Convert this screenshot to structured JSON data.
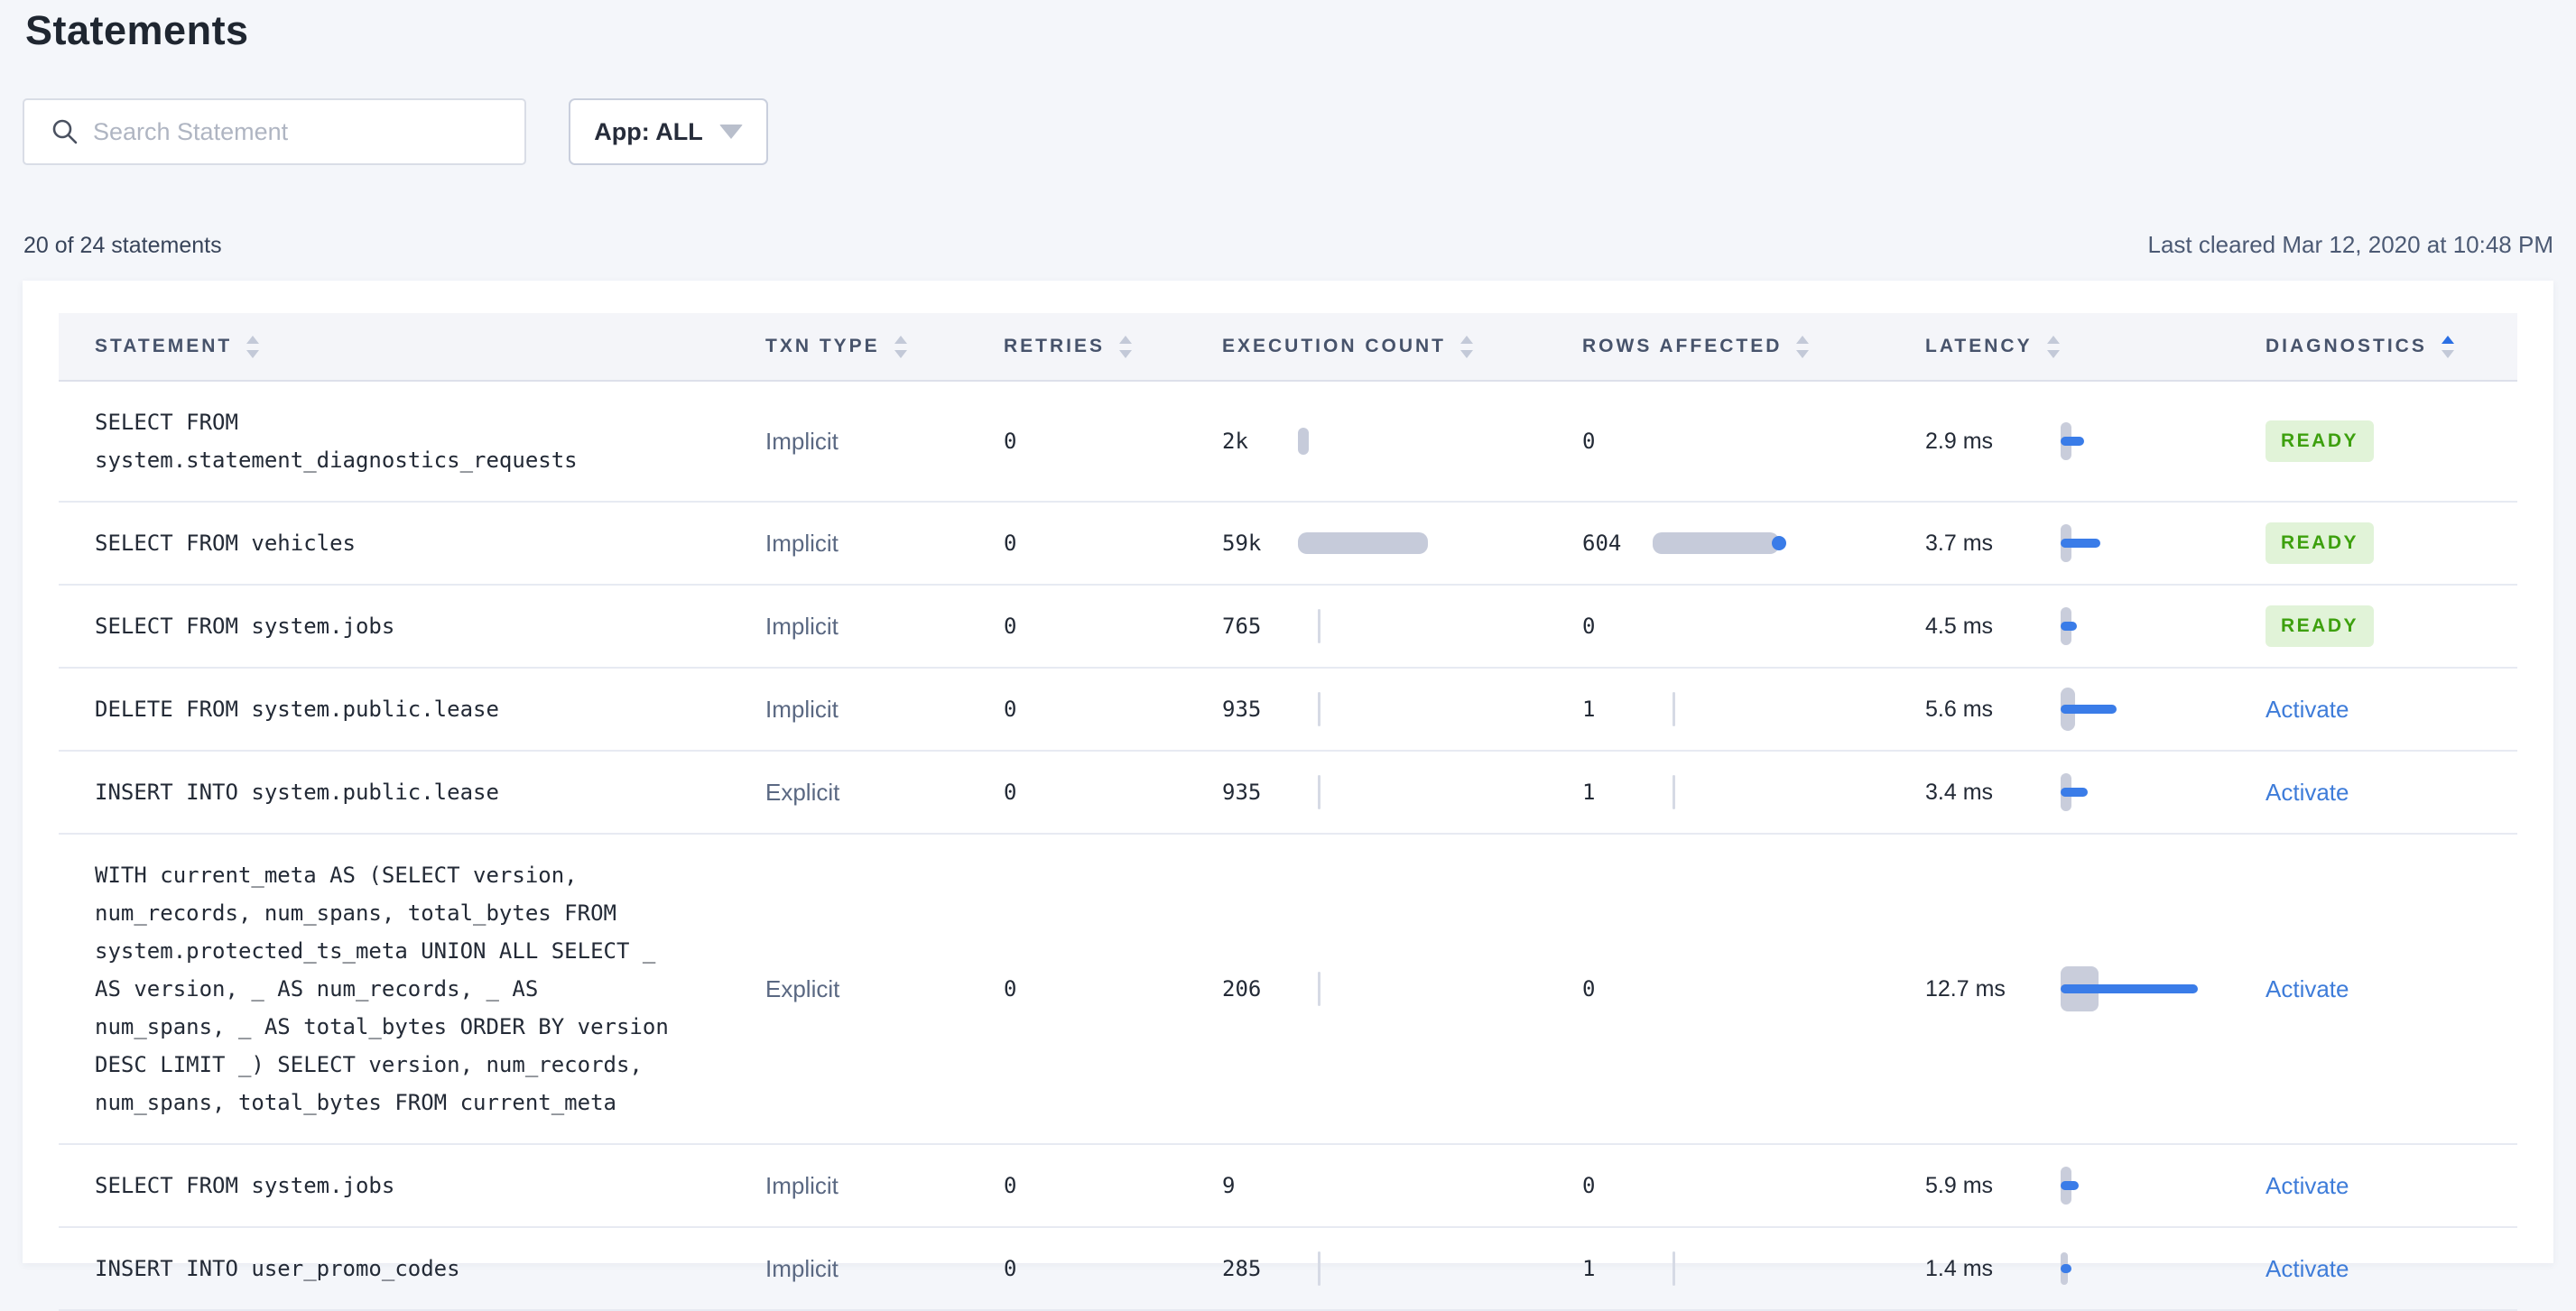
{
  "page": {
    "title": "Statements"
  },
  "toolbar": {
    "search_placeholder": "Search Statement",
    "app_filter_label": "App: ALL"
  },
  "summary": {
    "count_text": "20 of 24 statements",
    "last_cleared": "Last cleared Mar 12, 2020 at 10:48 PM"
  },
  "colors": {
    "page-bg": "#F4F6FA",
    "band-bg": "#F4F5F9",
    "accent-blue": "#3A7CE8",
    "link-blue": "#3E7CD9",
    "badge-green": "#3DA00E",
    "badge-green-bg": "#E1F3D8",
    "bar-gray": "#C6CBDA",
    "capsule-gray": "#C9CDDB",
    "header-text": "#47536B",
    "text-dark": "#232A36",
    "text-slate": "#5A6882"
  },
  "table": {
    "columns": [
      {
        "label": "STATEMENT",
        "sort": "none"
      },
      {
        "label": "TXN TYPE",
        "sort": "none"
      },
      {
        "label": "RETRIES",
        "sort": "none"
      },
      {
        "label": "EXECUTION COUNT",
        "sort": "none"
      },
      {
        "label": "ROWS AFFECTED",
        "sort": "none"
      },
      {
        "label": "LATENCY",
        "sort": "none"
      },
      {
        "label": "DIAGNOSTICS",
        "sort": "asc"
      }
    ],
    "rows": [
      {
        "statement_lines": [
          "SELECT FROM",
          "system.statement_diagnostics_requests"
        ],
        "txn_type": "Implicit",
        "retries": "0",
        "execution_count": "2k",
        "rows_affected": "0",
        "latency": "2.9 ms",
        "diagnostics": {
          "type": "badge",
          "label": "READY"
        },
        "viz": {
          "exec": {
            "kind": "bar",
            "w": 12,
            "h": 30
          },
          "rows": {
            "kind": "none"
          },
          "lat": {
            "cw": 12,
            "ch": 42,
            "bw": 26
          }
        }
      },
      {
        "statement_lines": [
          "SELECT FROM vehicles"
        ],
        "txn_type": "Implicit",
        "retries": "0",
        "execution_count": "59k",
        "rows_affected": "604",
        "latency": "3.7 ms",
        "diagnostics": {
          "type": "badge",
          "label": "READY"
        },
        "viz": {
          "exec": {
            "kind": "bar",
            "w": 144,
            "h": 24
          },
          "rows": {
            "kind": "bar",
            "w": 140,
            "h": 24,
            "dot": true
          },
          "lat": {
            "cw": 12,
            "ch": 42,
            "bw": 44
          }
        }
      },
      {
        "statement_lines": [
          "SELECT FROM system.jobs"
        ],
        "txn_type": "Implicit",
        "retries": "0",
        "execution_count": "765",
        "rows_affected": "0",
        "latency": "4.5 ms",
        "diagnostics": {
          "type": "badge",
          "label": "READY"
        },
        "viz": {
          "exec": {
            "kind": "tick"
          },
          "rows": {
            "kind": "none"
          },
          "lat": {
            "cw": 12,
            "ch": 42,
            "bw": 18
          }
        }
      },
      {
        "statement_lines": [
          "DELETE FROM system.public.lease"
        ],
        "txn_type": "Implicit",
        "retries": "0",
        "execution_count": "935",
        "rows_affected": "1",
        "latency": "5.6 ms",
        "diagnostics": {
          "type": "link",
          "label": "Activate"
        },
        "viz": {
          "exec": {
            "kind": "tick"
          },
          "rows": {
            "kind": "tick"
          },
          "lat": {
            "cw": 16,
            "ch": 48,
            "bw": 62
          }
        }
      },
      {
        "statement_lines": [
          "INSERT INTO system.public.lease"
        ],
        "txn_type": "Explicit",
        "retries": "0",
        "execution_count": "935",
        "rows_affected": "1",
        "latency": "3.4 ms",
        "diagnostics": {
          "type": "link",
          "label": "Activate"
        },
        "viz": {
          "exec": {
            "kind": "tick"
          },
          "rows": {
            "kind": "tick"
          },
          "lat": {
            "cw": 12,
            "ch": 42,
            "bw": 30
          }
        }
      },
      {
        "statement_lines": [
          "WITH current_meta AS (SELECT version,",
          "num_records, num_spans, total_bytes FROM",
          "system.protected_ts_meta UNION ALL SELECT _",
          "AS version, _ AS num_records, _ AS",
          "num_spans, _ AS total_bytes ORDER BY version",
          "DESC LIMIT _) SELECT version, num_records,",
          "num_spans, total_bytes FROM current_meta"
        ],
        "txn_type": "Explicit",
        "retries": "0",
        "execution_count": "206",
        "rows_affected": "0",
        "latency": "12.7 ms",
        "diagnostics": {
          "type": "link",
          "label": "Activate"
        },
        "viz": {
          "exec": {
            "kind": "tick"
          },
          "rows": {
            "kind": "none"
          },
          "lat": {
            "cw": 42,
            "ch": 50,
            "bw": 152
          }
        }
      },
      {
        "statement_lines": [
          "SELECT FROM system.jobs"
        ],
        "txn_type": "Implicit",
        "retries": "0",
        "execution_count": "9",
        "rows_affected": "0",
        "latency": "5.9 ms",
        "diagnostics": {
          "type": "link",
          "label": "Activate"
        },
        "viz": {
          "exec": {
            "kind": "none"
          },
          "rows": {
            "kind": "none"
          },
          "lat": {
            "cw": 12,
            "ch": 42,
            "bw": 20
          }
        }
      },
      {
        "statement_lines": [
          "INSERT INTO user_promo_codes"
        ],
        "txn_type": "Implicit",
        "retries": "0",
        "execution_count": "285",
        "rows_affected": "1",
        "latency": "1.4 ms",
        "diagnostics": {
          "type": "link",
          "label": "Activate"
        },
        "viz": {
          "exec": {
            "kind": "tick"
          },
          "rows": {
            "kind": "tick"
          },
          "lat": {
            "cw": 8,
            "ch": 36,
            "bw": 12
          }
        }
      }
    ]
  }
}
